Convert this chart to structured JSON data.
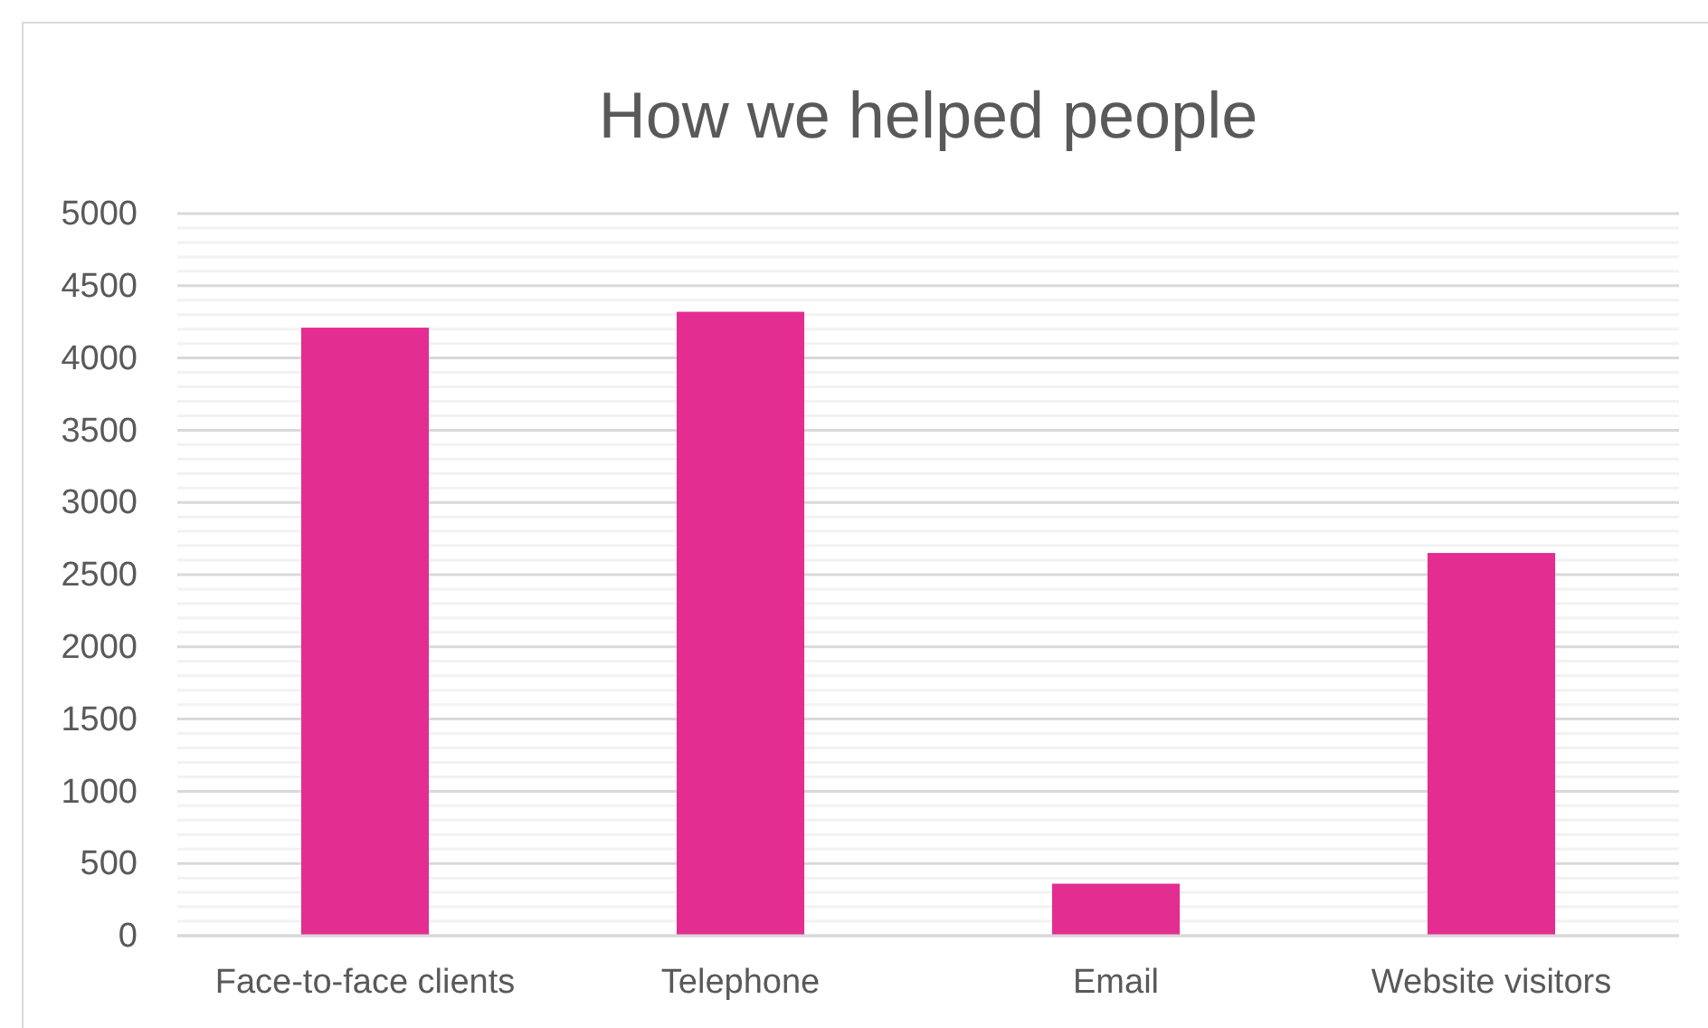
{
  "chart_data": {
    "type": "bar",
    "title": "How we helped people",
    "categories": [
      "Face-to-face clients",
      "Telephone",
      "Email",
      "Website visitors"
    ],
    "values": [
      4210,
      4320,
      360,
      2650
    ],
    "color": "#e32d91",
    "ylim": [
      0,
      5000
    ],
    "yticks": [
      0,
      500,
      1000,
      1500,
      2000,
      2500,
      3000,
      3500,
      4000,
      4500,
      5000
    ],
    "grid": "y"
  }
}
